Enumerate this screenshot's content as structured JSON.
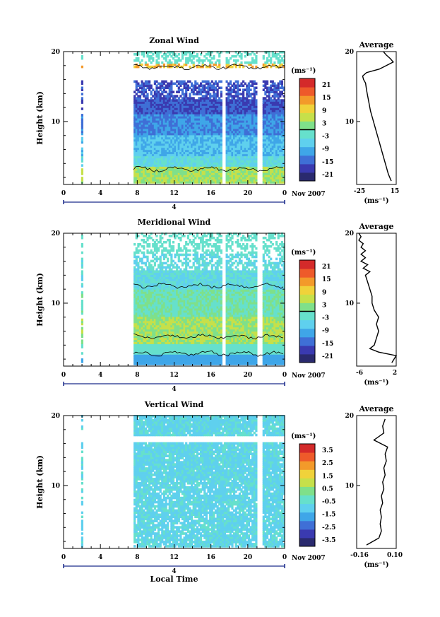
{
  "colors": {
    "colormap": [
      "#2a2a6e",
      "#3a3ab0",
      "#3f6fd6",
      "#3fa6e8",
      "#5fd0ee",
      "#66e0cc",
      "#7fe08a",
      "#c6e04a",
      "#f0d23a",
      "#f39a2a",
      "#ee5a2a",
      "#d42a2a"
    ],
    "contour": "#000000",
    "axis": "#000000"
  },
  "chart_data": [
    {
      "id": "zonal",
      "type": "heatmap",
      "title": "Zonal Wind",
      "ylabel": "Height (km)",
      "xlabel": "",
      "xlim": [
        0,
        24
      ],
      "ylim": [
        1,
        20
      ],
      "x_ticks": [
        "0",
        "4",
        "8",
        "12",
        "16",
        "20",
        "0"
      ],
      "y_ticks": [
        "10",
        "20"
      ],
      "date_label": "4",
      "month_label": "Nov 2007",
      "unit_label": "(ms⁻¹)",
      "colorbar": {
        "levels": [
          "-21",
          "-15",
          "-9",
          "-3",
          "3",
          "9",
          "15",
          "21"
        ],
        "zero_line": true
      },
      "data_blocks": [
        {
          "x": [
            1.9,
            2.1
          ]
        },
        {
          "x": [
            7.6,
            17.2
          ]
        },
        {
          "x": [
            17.6,
            21.0
          ]
        },
        {
          "x": [
            21.6,
            24
          ]
        }
      ],
      "profile": {
        "title": "Average",
        "xlabel": "(ms⁻¹)",
        "xlim": [
          -25,
          15
        ],
        "x_ticks": [
          "-25",
          "15"
        ],
        "y_ticks": [
          "10",
          "20"
        ],
        "points": [
          [
            10,
            1.5
          ],
          [
            7,
            2.5
          ],
          [
            4,
            4
          ],
          [
            1,
            5.5
          ],
          [
            -2,
            7
          ],
          [
            -5,
            8.5
          ],
          [
            -8,
            10
          ],
          [
            -11,
            11.5
          ],
          [
            -13,
            13
          ],
          [
            -15,
            14.5
          ],
          [
            -16,
            15.5
          ],
          [
            -18,
            16
          ],
          [
            -19,
            16.5
          ],
          [
            -15,
            17
          ],
          [
            -2,
            17.5
          ],
          [
            5,
            18
          ],
          [
            12,
            18.5
          ],
          [
            9,
            19
          ],
          [
            5,
            19.5
          ],
          [
            2,
            20
          ]
        ]
      }
    },
    {
      "id": "meridional",
      "type": "heatmap",
      "title": "Meridional Wind",
      "ylabel": "Height (km)",
      "xlabel": "",
      "xlim": [
        0,
        24
      ],
      "ylim": [
        1,
        20
      ],
      "x_ticks": [
        "0",
        "4",
        "8",
        "12",
        "16",
        "20",
        "0"
      ],
      "y_ticks": [
        "10",
        "20"
      ],
      "date_label": "4",
      "month_label": "Nov 2007",
      "unit_label": "(ms⁻¹)",
      "colorbar": {
        "levels": [
          "-21",
          "-15",
          "-9",
          "-3",
          "3",
          "9",
          "15",
          "21"
        ],
        "zero_line": true
      },
      "data_blocks": [
        {
          "x": [
            1.9,
            2.1
          ]
        },
        {
          "x": [
            7.6,
            17.2
          ]
        },
        {
          "x": [
            17.6,
            21.0
          ]
        },
        {
          "x": [
            21.6,
            24
          ]
        }
      ],
      "profile": {
        "title": "Average",
        "xlabel": "(ms⁻¹)",
        "xlim": [
          -6,
          3
        ],
        "x_ticks": [
          "-6",
          "2"
        ],
        "y_ticks": [
          "10",
          "20"
        ],
        "points": [
          [
            2,
            1.5
          ],
          [
            3,
            2.5
          ],
          [
            -1,
            3
          ],
          [
            -3,
            3.5
          ],
          [
            -2,
            4
          ],
          [
            -1.5,
            5
          ],
          [
            -1,
            6
          ],
          [
            -1.5,
            7
          ],
          [
            -1,
            8
          ],
          [
            -2,
            9
          ],
          [
            -2.5,
            10
          ],
          [
            -2.5,
            11
          ],
          [
            -3,
            12
          ],
          [
            -3.5,
            13
          ],
          [
            -4,
            14
          ],
          [
            -3,
            14.5
          ],
          [
            -4.5,
            15
          ],
          [
            -3.5,
            15.5
          ],
          [
            -5,
            16
          ],
          [
            -4,
            16.5
          ],
          [
            -5,
            17
          ],
          [
            -4,
            17.5
          ],
          [
            -5,
            18
          ],
          [
            -4.5,
            18.5
          ],
          [
            -5.5,
            19
          ],
          [
            -5,
            19.5
          ],
          [
            -5.5,
            20
          ]
        ]
      }
    },
    {
      "id": "vertical",
      "type": "heatmap",
      "title": "Vertical Wind",
      "ylabel": "Height (km)",
      "xlabel": "Local Time",
      "xlim": [
        0,
        24
      ],
      "ylim": [
        1,
        20
      ],
      "x_ticks": [
        "0",
        "4",
        "8",
        "12",
        "16",
        "20",
        "0"
      ],
      "y_ticks": [
        "10",
        "20"
      ],
      "date_label": "4",
      "month_label": "Nov 2007",
      "unit_label": "(ms⁻¹)",
      "colorbar": {
        "levels": [
          "-3.5",
          "-2.5",
          "-1.5",
          "-0.5",
          "0.5",
          "1.5",
          "2.5",
          "3.5"
        ],
        "zero_line": false
      },
      "data_blocks": [
        {
          "x": [
            1.9,
            2.1
          ]
        },
        {
          "x": [
            7.6,
            21.0
          ]
        },
        {
          "x": [
            21.6,
            24
          ]
        }
      ],
      "profile": {
        "title": "Average",
        "xlabel": "(ms⁻¹)",
        "xlim": [
          -0.2,
          0.12
        ],
        "x_ticks": [
          "-0.16",
          "0.10"
        ],
        "y_ticks": [
          "10",
          "20"
        ],
        "points": [
          [
            -0.12,
            1.5
          ],
          [
            -0.02,
            2.5
          ],
          [
            0.0,
            3.5
          ],
          [
            -0.01,
            4.5
          ],
          [
            0.0,
            5.5
          ],
          [
            -0.01,
            6.5
          ],
          [
            0.01,
            7.5
          ],
          [
            0.0,
            8.5
          ],
          [
            0.02,
            9.5
          ],
          [
            0.01,
            10.5
          ],
          [
            0.03,
            11.5
          ],
          [
            0.02,
            12.5
          ],
          [
            0.04,
            13.5
          ],
          [
            0.03,
            14.5
          ],
          [
            0.05,
            15.5
          ],
          [
            -0.06,
            16.5
          ],
          [
            0.02,
            17.5
          ],
          [
            0.01,
            18.5
          ],
          [
            0.03,
            19.5
          ]
        ]
      }
    }
  ]
}
